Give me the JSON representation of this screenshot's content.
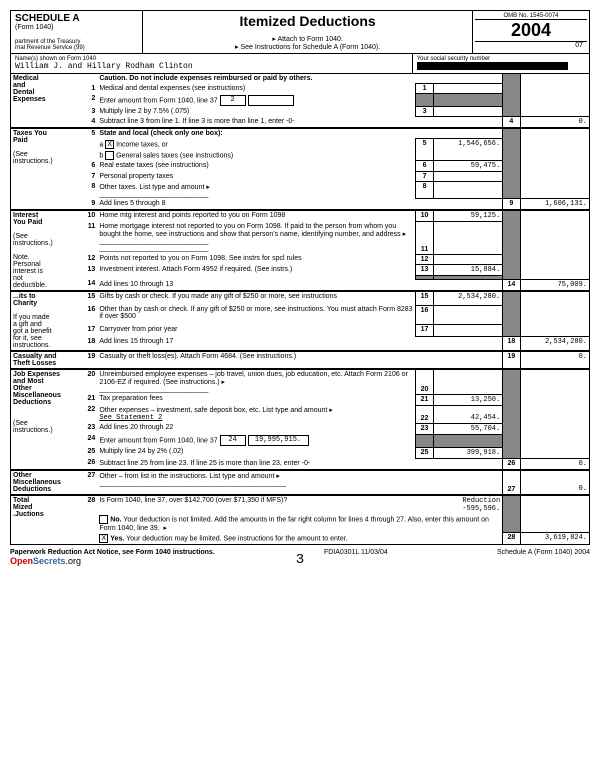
{
  "header": {
    "schedule": "SCHEDULE A",
    "form": "(Form 1040)",
    "dept": "partment of the Treasury\nrnal Revenue Service   (99)",
    "title": "Itemized Deductions",
    "attach": "▸ Attach to Form 1040.",
    "seeinstr": "▸ See Instructions for Schedule A (Form 1040).",
    "omb": "OMB No. 1545-0074",
    "year": "2004",
    "seq": "07"
  },
  "name": {
    "label": "Name(s) shown on Form 1040",
    "value": "William J. and Hillary Rodham Clinton",
    "ssn_label": "Your social security number"
  },
  "sections": {
    "medical": {
      "title": "Medical\nand\nDental\nExpenses"
    },
    "taxes": {
      "title": "Taxes You\nPaid",
      "sub": "(See\ninstructions.)"
    },
    "interest": {
      "title": "Interest\nYou Paid",
      "sub": "(See\ninstructions.)",
      "note": "Note.\nPersonal\ninterest is\nnot\ndeductible."
    },
    "gifts": {
      "title": "...its to\nCharity",
      "sub": "If you made\na gift and\ngot a benefit\nfor it, see\ninstructions."
    },
    "casualty": {
      "title": "Casualty and\nTheft Losses"
    },
    "job": {
      "title": "Job Expenses\nand Most\nOther\nMiscellaneous\nDeductions",
      "sub": "(See\ninstructions.)"
    },
    "othermisc": {
      "title": "Other\nMiscellaneous\nDeductions"
    },
    "total": {
      "title": "Total\nMized\n.Juctions"
    }
  },
  "lines": {
    "l_caution": "Caution. Do not include expenses reimbursed or paid by others.",
    "l1": "Medical and dental expenses (see instructions)",
    "l2": "Enter amount from Form 1040, line 37",
    "l2box": "2",
    "l3": "Multiply line 2 by 7.5% (.075)",
    "l4": "Subtract line 3 from line 1. If line 3 is more than line 1, enter -0-",
    "l5": "State and local (check only one box):",
    "l5a": "Income taxes, or",
    "l5b": "General sales taxes (see instructions)",
    "l6": "Real estate taxes (see instructions)",
    "l7": "Personal property taxes",
    "l8": "Other taxes. List type and amount ▸",
    "l9": "Add lines 5 through 8",
    "l10": "Home mtg interest and points reported to you on Form 1098",
    "l11": "Home mortgage interest not reported to you on Form 1098. If paid to the person from whom you bought the home, see instructions and show that person's name, identifying number, and address ▸",
    "l12": "Points not reported to you on Form 1098. See instrs for spcl rules",
    "l13": "Investment interest. Attach Form 4952 if required. (See instrs.)",
    "l14": "Add lines 10 through 13",
    "l15": "Gifts by cash or check. If you made any gift of $250 or more, see instructions",
    "l16": "Other than by cash or check. If any gift of $250 or more, see instructions. You must attach Form 8283 if over $500",
    "l17": "Carryover from prior year",
    "l18": "Add lines 15 through 17",
    "l19": "Casualty or theft loss(es). Attach Form 4684. (See instructions.)",
    "l20": "Unreimbursed employee expenses – job travel, union dues, job education, etc. Attach Form 2106 or 2106-EZ if required. (See instructions.) ▸",
    "l21": "Tax preparation fees",
    "l22": "Other expenses – investment, safe deposit box, etc. List type and amount ▸",
    "l22stmt": "See Statement 2",
    "l23": "Add lines 20 through 22",
    "l24": "Enter amount from Form 1040, line 37",
    "l24box": "24",
    "l25": "Multiply line 24 by 2% (.02)",
    "l26": "Subtract line 25 from line 23. If line 25 is more than line 23, enter -0-",
    "l27": "Other – from list in the instructions. List type and amount ▸",
    "l28": "Is Form 1040, line 37, over $142,700 (over $71,350 if MFS)?",
    "l28no": "Your deduction is not limited. Add the amounts in the far right column for lines 4 through 27. Also, enter this amount on Form 1040, line 39.",
    "l28yes": "Your deduction may be limited. See instructions for the amount to enter.",
    "reduction_label": "Reduction",
    "reduction_val": "-595,596."
  },
  "amounts": {
    "a4": "0.",
    "a5": "1,546,656.",
    "a6": "59,475.",
    "a9": "1,606,131.",
    "a10": "59,125.",
    "a13": "15,884.",
    "a14": "75,009.",
    "a15": "2,534,280.",
    "a18": "2,534,280.",
    "a19": "0.",
    "a21": "13,250.",
    "a22": "42,454.",
    "a23": "55,704.",
    "a24": "19,995,915.",
    "a25": "399,918.",
    "a26": "0.",
    "a27": "0.",
    "a28": "3,619,824."
  },
  "footer": {
    "pra": "Paperwork Reduction Act Notice, see Form 1040 instructions.",
    "code": "FDIA0301L   11/03/04",
    "sched": "Schedule A (Form 1040) 2004",
    "page": "3",
    "logo1": "Open",
    "logo2": "Secrets",
    "logo3": ".org"
  }
}
